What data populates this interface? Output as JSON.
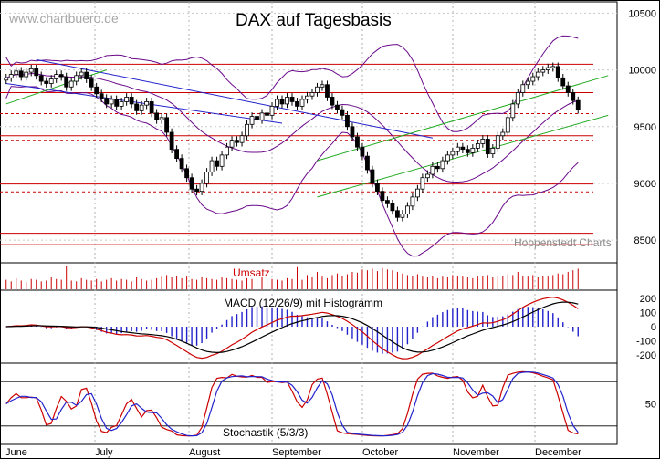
{
  "chart_data": {
    "type": "candlestick",
    "watermark": "www.chartbuero.de",
    "title": "DAX auf Tagesbasis",
    "credit": "Hoppenstedt Charts",
    "months": [
      "June",
      "July",
      "August",
      "September",
      "October",
      "November",
      "December"
    ],
    "price_axis": {
      "ticks": [
        8500,
        9000,
        9500,
        10000,
        10500
      ],
      "tick_labels": [
        "8500",
        "9000",
        "9500",
        "10000",
        "10500"
      ],
      "range": [
        8300,
        10600
      ]
    },
    "support_resistance_lines": [
      10050,
      9800,
      9420,
      8995,
      8560,
      8460
    ],
    "dashed_levels": [
      9615,
      9380,
      8925
    ],
    "trend_channels": [
      {
        "name": "downtrend",
        "color": "#2222cc",
        "from": [
          6,
          10090
        ],
        "to": [
          85,
          9400
        ]
      },
      {
        "name": "downtrend-lower",
        "color": "#2222cc",
        "from": [
          0,
          9880
        ],
        "to": [
          55,
          9530
        ]
      },
      {
        "name": "uptrend-upper",
        "color": "#22aa22",
        "from": [
          62,
          9200
        ],
        "to": [
          120,
          9950
        ]
      },
      {
        "name": "uptrend-lower",
        "color": "#22aa22",
        "from": [
          62,
          8880
        ],
        "to": [
          120,
          9600
        ]
      },
      {
        "name": "early-uptrend",
        "color": "#22aa22",
        "from": [
          0,
          9700
        ],
        "to": [
          20,
          10000
        ]
      }
    ],
    "closes": [
      9930,
      9960,
      9990,
      9940,
      9980,
      10010,
      9950,
      9900,
      9880,
      9920,
      9960,
      9940,
      9850,
      9900,
      9950,
      9980,
      9920,
      9850,
      9790,
      9750,
      9700,
      9740,
      9680,
      9720,
      9760,
      9700,
      9640,
      9690,
      9720,
      9620,
      9560,
      9580,
      9450,
      9300,
      9220,
      9130,
      9050,
      8950,
      8930,
      9000,
      9100,
      9200,
      9150,
      9250,
      9320,
      9380,
      9360,
      9420,
      9520,
      9590,
      9560,
      9620,
      9600,
      9680,
      9740,
      9700,
      9760,
      9720,
      9680,
      9740,
      9770,
      9800,
      9850,
      9870,
      9760,
      9690,
      9650,
      9600,
      9500,
      9410,
      9320,
      9240,
      9120,
      9000,
      8930,
      8850,
      8820,
      8760,
      8700,
      8730,
      8800,
      8880,
      8950,
      9050,
      9080,
      9150,
      9130,
      9200,
      9250,
      9280,
      9320,
      9300,
      9270,
      9310,
      9350,
      9390,
      9260,
      9310,
      9420,
      9450,
      9580,
      9700,
      9800,
      9870,
      9900,
      9940,
      9980,
      10000,
      10020,
      10030,
      9930,
      9860,
      9800,
      9730,
      9650
    ],
    "volume": [
      12,
      10,
      14,
      11,
      9,
      13,
      12,
      10,
      11,
      15,
      13,
      12,
      30,
      11,
      10,
      14,
      12,
      11,
      13,
      10,
      12,
      14,
      11,
      13,
      12,
      10,
      15,
      13,
      11,
      12,
      14,
      16,
      18,
      15,
      17,
      14,
      16,
      13,
      12,
      15,
      14,
      13,
      12,
      15,
      14,
      13,
      12,
      11,
      14,
      13,
      12,
      15,
      14,
      13,
      12,
      11,
      14,
      13,
      28,
      12,
      18,
      15,
      22,
      16,
      14,
      18,
      20,
      17,
      19,
      22,
      21,
      25,
      24,
      26,
      23,
      27,
      25,
      24,
      22,
      20,
      18,
      17,
      19,
      16,
      15,
      17,
      14,
      16,
      15,
      18,
      17,
      16,
      15,
      14,
      16,
      17,
      18,
      15,
      16,
      17,
      19,
      18,
      22,
      17,
      16,
      18,
      15,
      17,
      16,
      18,
      20,
      19,
      22,
      24,
      26
    ],
    "volume_label": "Umsatz",
    "macd": {
      "label": "MACD (12/26/9) mit Histogramm",
      "ticks": [
        200,
        100,
        0,
        -100,
        -200
      ],
      "tick_labels": [
        "200",
        "100",
        "0",
        "-100",
        "-200"
      ],
      "range": [
        -260,
        260
      ],
      "series_colors": {
        "macd": "#cc0000",
        "signal": "#000000",
        "histogram": "#2222cc"
      }
    },
    "stochastic": {
      "label": "Stochastik (5/3/3)",
      "ticks": [
        50
      ],
      "tick_labels": [
        "50"
      ],
      "levels": [
        80,
        20
      ],
      "range": [
        0,
        100
      ],
      "series_colors": {
        "k": "#cc0000",
        "d": "#2222cc"
      }
    }
  }
}
